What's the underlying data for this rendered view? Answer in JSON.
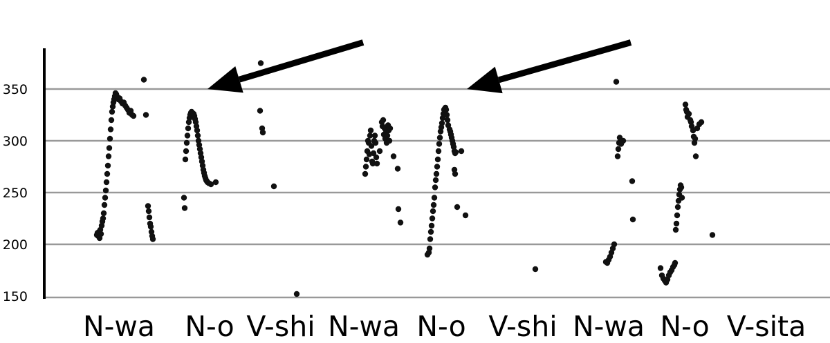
{
  "chart_data": {
    "type": "scatter",
    "title": "",
    "xlabel": "",
    "ylabel": "",
    "ylim": [
      150,
      385
    ],
    "xlim": [
      0,
      1200
    ],
    "yticks": [
      150,
      200,
      250,
      300,
      350
    ],
    "gridlines": [
      200,
      250,
      300,
      350
    ],
    "grid": true,
    "categories": [
      "N-wa",
      "N-o",
      "V-shi",
      "N-wa",
      "N-o",
      "V-shi",
      "N-wa",
      "N-o",
      "V-sita"
    ],
    "category_x": [
      172,
      303,
      406,
      526,
      638,
      756,
      880,
      990,
      1108
    ],
    "arrows": [
      {
        "from": [
          525,
          395
        ],
        "to": [
          300,
          350
        ]
      },
      {
        "from": [
          912,
          395
        ],
        "to": [
          675,
          350
        ]
      }
    ],
    "colors": {
      "points": "#111111",
      "grid": "#999999",
      "axis": "#000000"
    },
    "series": [
      {
        "points": [
          [
            140,
            209
          ],
          [
            141,
            211
          ],
          [
            142,
            208
          ],
          [
            143,
            212
          ],
          [
            144,
            206
          ],
          [
            145,
            214
          ],
          [
            146,
            210
          ],
          [
            147,
            218
          ],
          [
            148,
            222
          ],
          [
            149,
            225
          ],
          [
            150,
            230
          ],
          [
            151,
            238
          ],
          [
            152,
            245
          ],
          [
            153,
            252
          ],
          [
            154,
            260
          ],
          [
            155,
            268
          ],
          [
            156,
            276
          ],
          [
            157,
            285
          ],
          [
            158,
            293
          ],
          [
            159,
            302
          ],
          [
            160,
            311
          ],
          [
            161,
            320
          ],
          [
            162,
            328
          ],
          [
            163,
            333
          ],
          [
            164,
            337
          ],
          [
            165,
            340
          ],
          [
            166,
            343
          ],
          [
            167,
            346
          ],
          [
            168,
            345
          ],
          [
            169,
            343
          ],
          [
            170,
            342
          ],
          [
            171,
            340
          ],
          [
            173,
            341
          ],
          [
            175,
            338
          ],
          [
            177,
            336
          ],
          [
            179,
            337
          ],
          [
            181,
            334
          ],
          [
            183,
            332
          ],
          [
            185,
            330
          ],
          [
            187,
            327
          ],
          [
            189,
            329
          ],
          [
            191,
            325
          ],
          [
            193,
            324
          ],
          [
            208,
            359
          ],
          [
            211,
            325
          ],
          [
            214,
            237
          ],
          [
            215,
            232
          ],
          [
            216,
            226
          ],
          [
            217,
            220
          ],
          [
            218,
            217
          ],
          [
            219,
            212
          ],
          [
            220,
            208
          ],
          [
            221,
            205
          ],
          [
            266,
            245
          ],
          [
            267,
            235
          ],
          [
            268,
            282
          ],
          [
            269,
            290
          ],
          [
            270,
            298
          ],
          [
            271,
            305
          ],
          [
            272,
            312
          ],
          [
            273,
            318
          ],
          [
            274,
            322
          ],
          [
            275,
            325
          ],
          [
            276,
            327
          ],
          [
            277,
            328
          ],
          [
            278,
            327
          ],
          [
            279,
            325
          ],
          [
            280,
            326
          ],
          [
            281,
            324
          ],
          [
            282,
            321
          ],
          [
            283,
            318
          ],
          [
            284,
            314
          ],
          [
            285,
            310
          ],
          [
            286,
            305
          ],
          [
            287,
            300
          ],
          [
            288,
            296
          ],
          [
            289,
            292
          ],
          [
            290,
            288
          ],
          [
            291,
            284
          ],
          [
            292,
            280
          ],
          [
            293,
            276
          ],
          [
            294,
            272
          ],
          [
            295,
            269
          ],
          [
            296,
            266
          ],
          [
            297,
            264
          ],
          [
            298,
            262
          ],
          [
            299,
            261
          ],
          [
            300,
            260
          ],
          [
            302,
            259
          ],
          [
            305,
            258
          ],
          [
            312,
            260
          ],
          [
            377,
            375
          ],
          [
            376,
            329
          ],
          [
            379,
            312
          ],
          [
            380,
            308
          ],
          [
            396,
            256
          ],
          [
            429,
            152
          ],
          [
            528,
            268
          ],
          [
            529,
            275
          ],
          [
            530,
            282
          ],
          [
            531,
            290
          ],
          [
            532,
            300
          ],
          [
            533,
            298
          ],
          [
            534,
            287
          ],
          [
            535,
            305
          ],
          [
            536,
            310
          ],
          [
            537,
            295
          ],
          [
            538,
            280
          ],
          [
            539,
            278
          ],
          [
            540,
            288
          ],
          [
            541,
            300
          ],
          [
            542,
            305
          ],
          [
            543,
            298
          ],
          [
            544,
            284
          ],
          [
            545,
            278
          ],
          [
            549,
            290
          ],
          [
            552,
            318
          ],
          [
            553,
            314
          ],
          [
            554,
            320
          ],
          [
            555,
            306
          ],
          [
            556,
            312
          ],
          [
            557,
            302
          ],
          [
            558,
            310
          ],
          [
            559,
            298
          ],
          [
            560,
            305
          ],
          [
            561,
            315
          ],
          [
            562,
            310
          ],
          [
            563,
            300
          ],
          [
            564,
            312
          ],
          [
            569,
            285
          ],
          [
            575,
            273
          ],
          [
            576,
            234
          ],
          [
            579,
            221
          ],
          [
            618,
            190
          ],
          [
            620,
            192
          ],
          [
            621,
            196
          ],
          [
            622,
            205
          ],
          [
            623,
            212
          ],
          [
            624,
            218
          ],
          [
            625,
            225
          ],
          [
            626,
            232
          ],
          [
            627,
            238
          ],
          [
            628,
            245
          ],
          [
            629,
            255
          ],
          [
            630,
            262
          ],
          [
            631,
            268
          ],
          [
            632,
            275
          ],
          [
            633,
            282
          ],
          [
            634,
            290
          ],
          [
            635,
            297
          ],
          [
            636,
            303
          ],
          [
            637,
            309
          ],
          [
            638,
            313
          ],
          [
            639,
            317
          ],
          [
            640,
            322
          ],
          [
            641,
            326
          ],
          [
            642,
            330
          ],
          [
            643,
            331
          ],
          [
            644,
            332
          ],
          [
            645,
            330
          ],
          [
            646,
            325
          ],
          [
            647,
            320
          ],
          [
            648,
            315
          ],
          [
            650,
            311
          ],
          [
            651,
            309
          ],
          [
            652,
            306
          ],
          [
            653,
            303
          ],
          [
            654,
            300
          ],
          [
            655,
            297
          ],
          [
            656,
            294
          ],
          [
            657,
            290
          ],
          [
            658,
            288
          ],
          [
            659,
            289
          ],
          [
            657,
            272
          ],
          [
            658,
            268
          ],
          [
            661,
            236
          ],
          [
            667,
            290
          ],
          [
            673,
            228
          ],
          [
            774,
            176
          ],
          [
            876,
            183
          ],
          [
            878,
            182
          ],
          [
            880,
            185
          ],
          [
            882,
            188
          ],
          [
            884,
            192
          ],
          [
            886,
            196
          ],
          [
            888,
            200
          ],
          [
            891,
            357
          ],
          [
            893,
            285
          ],
          [
            894,
            292
          ],
          [
            895,
            298
          ],
          [
            896,
            303
          ],
          [
            898,
            297
          ],
          [
            901,
            300
          ],
          [
            914,
            261
          ],
          [
            915,
            224
          ],
          [
            955,
            177
          ],
          [
            957,
            170
          ],
          [
            959,
            167
          ],
          [
            961,
            165
          ],
          [
            963,
            163
          ],
          [
            965,
            166
          ],
          [
            967,
            170
          ],
          [
            969,
            173
          ],
          [
            971,
            175
          ],
          [
            973,
            178
          ],
          [
            975,
            180
          ],
          [
            976,
            182
          ],
          [
            977,
            214
          ],
          [
            978,
            220
          ],
          [
            979,
            228
          ],
          [
            980,
            236
          ],
          [
            981,
            242
          ],
          [
            982,
            248
          ],
          [
            983,
            253
          ],
          [
            984,
            257
          ],
          [
            985,
            255
          ],
          [
            986,
            245
          ],
          [
            991,
            335
          ],
          [
            992,
            330
          ],
          [
            993,
            328
          ],
          [
            994,
            323
          ],
          [
            996,
            326
          ],
          [
            998,
            320
          ],
          [
            999,
            318
          ],
          [
            1000,
            314
          ],
          [
            1002,
            310
          ],
          [
            1003,
            304
          ],
          [
            1004,
            298
          ],
          [
            1005,
            302
          ],
          [
            1006,
            285
          ],
          [
            1008,
            312
          ],
          [
            1011,
            316
          ],
          [
            1014,
            318
          ],
          [
            1030,
            209
          ]
        ]
      }
    ]
  }
}
